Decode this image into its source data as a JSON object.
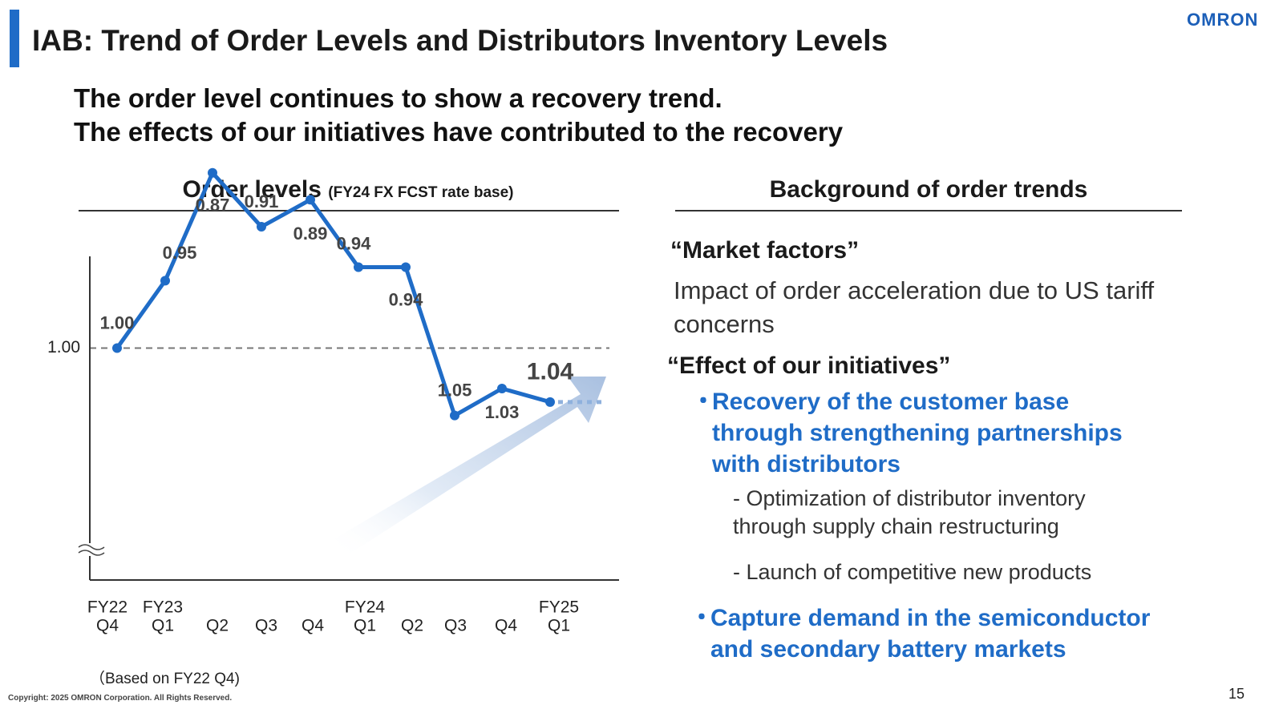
{
  "header": {
    "title": "IAB: Trend of Order Levels and Distributors Inventory Levels",
    "logo": "OMRON",
    "accent_color": "#1f6cc7"
  },
  "headline": {
    "line1": "The order level continues to show a recovery trend.",
    "line2": "The effects of our initiatives have contributed to the recovery"
  },
  "chart_section": {
    "title": "Order levels",
    "subtitle": "(FY24 FX FCST rate base)",
    "note": "（Based on FY22 Q4)"
  },
  "chart_data": {
    "type": "line",
    "title": "Order levels",
    "subtitle": "(FY24 FX FCST rate base)",
    "categories": [
      [
        "FY22",
        "Q4"
      ],
      [
        "FY23",
        "Q1"
      ],
      [
        "",
        "Q2"
      ],
      [
        "",
        "Q3"
      ],
      [
        "",
        "Q4"
      ],
      [
        "FY24",
        "Q1"
      ],
      [
        "",
        "Q2"
      ],
      [
        "",
        "Q3"
      ],
      [
        "",
        "Q4"
      ],
      [
        "FY25",
        "Q1"
      ]
    ],
    "series": [
      {
        "name": "Order level",
        "values": [
          1.0,
          0.95,
          0.87,
          0.91,
          0.89,
          0.94,
          0.94,
          1.05,
          1.03,
          1.04
        ],
        "labels": [
          "1.00",
          "0.95",
          "0.87",
          "0.91",
          "0.89",
          "0.94",
          "0.94",
          "1.05",
          "1.03",
          "1.04"
        ],
        "color": "#1f6cc7"
      }
    ],
    "reference_line": {
      "value": 1.0,
      "label": "1.00"
    },
    "ylim": [
      0.85,
      1.07
    ],
    "xlabel": "",
    "ylabel": "",
    "axis_break": true,
    "trend_arrow": "upward",
    "forecast_dotted": true
  },
  "background": {
    "title": "Background of order trends",
    "market_factors": {
      "heading": "“Market factors”",
      "text": "Impact of order acceleration due to US tariff concerns"
    },
    "initiatives": {
      "heading": "“Effect of our initiatives”",
      "bullet_glyph": "・",
      "item1": {
        "line1": "Recovery of the customer base",
        "line2": "through strengthening partnerships",
        "line3": "with distributors"
      },
      "sub1": {
        "line1": "- Optimization of distributor inventory",
        "line2": "through supply chain restructuring"
      },
      "sub2": "- Launch of competitive new products",
      "item2": {
        "line1": "Capture demand in the semiconductor",
        "line2": "and secondary battery markets"
      }
    }
  },
  "footer": {
    "copyright": "Copyright: 2025 OMRON Corporation. All Rights Reserved.",
    "page": "15"
  }
}
